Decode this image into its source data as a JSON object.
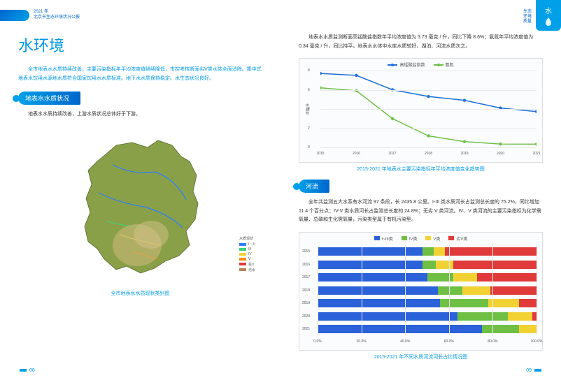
{
  "header": {
    "year_line": "2021 年",
    "report_line": "北京市生态环境状况公报",
    "side_label_line1": "生态",
    "side_label_line2": "环境",
    "side_label_line3": "质量",
    "tab_char": "水"
  },
  "left": {
    "title": "水环境",
    "intro": "全市地表水水质持续改善，主要污染指标年平均浓度值继续降低，市控考核断面劣Ⅴ类水体全面消除。集中式地表水饮用水源地水质符合国家饮用水水质标准。地下水水质保持稳定。水生态状况良好。",
    "section1": "地表水水质状况",
    "body1": "地表水水质持续改善，上游水质状况总体好于下游。",
    "map_caption": "全市地表水水质现状类别图",
    "map_legend_title": "水质现状",
    "map_legend": [
      {
        "label": "I ~ II",
        "color": "#2b7eff"
      },
      {
        "label": "III",
        "color": "#3cd27a"
      },
      {
        "label": "IV",
        "color": "#f2d233"
      },
      {
        "label": "V",
        "color": "#ff8a00"
      },
      {
        "label": "劣V",
        "color": "#e03a3a"
      },
      {
        "label": "无水",
        "color": "#b08750"
      }
    ],
    "page_num": "08"
  },
  "right": {
    "intro": "地表水水质监测断面高锰酸盐指数年平均浓度值为 3.73 毫克 / 升，同比下降 8.6%；氨氮年平均浓度值为 0.34 毫克 / 升，同比持平。地表水水体中水库水质较好，湖泊、河流水质次之。",
    "line_chart": {
      "legend": [
        {
          "name": "高锰酸盐指数",
          "color": "#1e6fd9"
        },
        {
          "name": "氨氮",
          "color": "#6fbf44"
        }
      ],
      "y_label": "浓度/升",
      "y_ticks": [
        0,
        2,
        4,
        6,
        8
      ],
      "ylim": [
        0,
        8
      ],
      "x_labels": [
        "2015",
        "2016",
        "2017",
        "2018",
        "2019",
        "2020",
        "2021"
      ],
      "series": {
        "permanganate": [
          7.7,
          7.5,
          6.0,
          5.3,
          4.9,
          4.1,
          3.73
        ],
        "ammonia": [
          6.2,
          5.9,
          3.0,
          1.2,
          0.6,
          0.35,
          0.34
        ]
      },
      "caption": "2015-2021 年地表水主要污染指标年平均浓度值变化趋势图",
      "grid_color": "#e8e8e8",
      "background": "#fafcfe"
    },
    "section2": "河流",
    "body2": "全年共监测五大水系有水河流 97 条段，长 2435.8 公里。I-III 类水质河长占监测总长度的 75.2%，同比增加 11.4 个百分点；IV-V 类水质河长占监测总长度的 24.8%；无劣 V 类河流。IV、V 类河流的主要污染指标为化学需氧量、总磷和生化需氧量，污染类型属于有机污染型。",
    "stacked_chart": {
      "legend": [
        {
          "name": "I~III类",
          "color": "#2b62d9",
          "key": "c13"
        },
        {
          "name": "IV类",
          "color": "#6fbf44",
          "key": "c4"
        },
        {
          "name": "V类",
          "color": "#f2d233",
          "key": "c5"
        },
        {
          "name": "劣V类",
          "color": "#e03a3a",
          "key": "c5b"
        }
      ],
      "x_ticks": [
        "0.0%",
        "20.0%",
        "40.0%",
        "60.0%",
        "80.0%",
        "100.0%"
      ],
      "years": [
        "2015",
        "2016",
        "2017",
        "2018",
        "2019",
        "2020",
        "2021"
      ],
      "data": [
        {
          "c13": 48,
          "c4": 5,
          "c5": 5,
          "c5b": 42
        },
        {
          "c13": 48,
          "c4": 6,
          "c5": 8,
          "c5b": 38
        },
        {
          "c13": 50,
          "c4": 12,
          "c5": 11,
          "c5b": 27
        },
        {
          "c13": 55,
          "c4": 11,
          "c5": 13,
          "c5b": 21
        },
        {
          "c13": 56,
          "c4": 22,
          "c5": 14,
          "c5b": 8
        },
        {
          "c13": 64,
          "c4": 23,
          "c5": 11,
          "c5b": 2
        },
        {
          "c13": 75,
          "c4": 17,
          "c5": 8,
          "c5b": 0
        }
      ],
      "caption": "2015-2021 年不同水质河流河长占比情况图",
      "background": "#fafcfe"
    },
    "page_num": "09"
  }
}
